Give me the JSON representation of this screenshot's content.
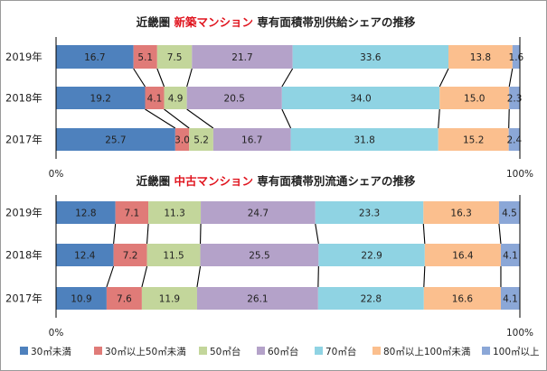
{
  "chart_data": [
    {
      "type": "bar",
      "stacked": true,
      "orientation": "horizontal",
      "title_parts": [
        "近畿圏 ",
        "新築マンション",
        " 専有面積帯別供給シェアの推移"
      ],
      "title_highlight_index": 1,
      "categories": [
        "2019年",
        "2018年",
        "2017年"
      ],
      "xlim": [
        0,
        100
      ],
      "x_tick_labels": [
        "0%",
        "100%"
      ],
      "series": [
        {
          "name": "30㎡未満",
          "values": [
            16.7,
            19.2,
            25.7
          ]
        },
        {
          "name": "30㎡以上50㎡未満",
          "values": [
            5.1,
            4.1,
            3.0
          ]
        },
        {
          "name": "50㎡台",
          "values": [
            7.5,
            4.9,
            5.2
          ]
        },
        {
          "name": "60㎡台",
          "values": [
            21.7,
            20.5,
            16.7
          ]
        },
        {
          "name": "70㎡台",
          "values": [
            33.6,
            34.0,
            31.8
          ]
        },
        {
          "name": "80㎡以上100㎡未満",
          "values": [
            13.8,
            15.0,
            15.2
          ]
        },
        {
          "name": "100㎡以上",
          "values": [
            1.6,
            2.3,
            2.4
          ]
        }
      ]
    },
    {
      "type": "bar",
      "stacked": true,
      "orientation": "horizontal",
      "title_parts": [
        "近畿圏 ",
        "中古マンション",
        " 専有面積帯別流通シェアの推移"
      ],
      "title_highlight_index": 1,
      "categories": [
        "2019年",
        "2018年",
        "2017年"
      ],
      "xlim": [
        0,
        100
      ],
      "x_tick_labels": [
        "0%",
        "100%"
      ],
      "series": [
        {
          "name": "30㎡未満",
          "values": [
            12.8,
            12.4,
            10.9
          ]
        },
        {
          "name": "30㎡以上50㎡未満",
          "values": [
            7.1,
            7.2,
            7.6
          ]
        },
        {
          "name": "50㎡台",
          "values": [
            11.3,
            11.5,
            11.9
          ]
        },
        {
          "name": "60㎡台",
          "values": [
            24.7,
            25.5,
            26.1
          ]
        },
        {
          "name": "70㎡台",
          "values": [
            23.3,
            22.9,
            22.8
          ]
        },
        {
          "name": "80㎡以上100㎡未満",
          "values": [
            16.3,
            16.4,
            16.6
          ]
        },
        {
          "name": "100㎡以上",
          "values": [
            4.5,
            4.1,
            4.1
          ]
        }
      ]
    }
  ],
  "legend": [
    "30㎡未満",
    "30㎡以上50㎡未満",
    "50㎡台",
    "60㎡台",
    "70㎡台",
    "80㎡以上100㎡未満",
    "100㎡以上"
  ],
  "colors": [
    "#4e81bd",
    "#e07b78",
    "#c3d69b",
    "#b4a2c9",
    "#8fd3e3",
    "#fbbf8e",
    "#8ba7d7"
  ]
}
